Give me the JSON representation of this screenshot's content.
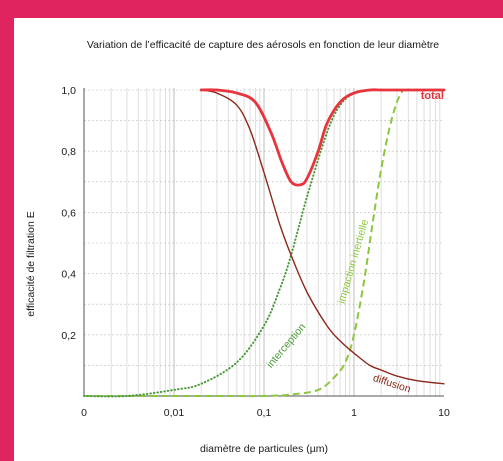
{
  "chart_data": {
    "type": "line",
    "title": "Variation de l’efficacité de capture des aérosols en fonction de leur diamètre",
    "xlabel": "diamètre de particules (µm)",
    "ylabel": "efficacité de filtration E",
    "x_scale": "log",
    "xlim": [
      0.001,
      10
    ],
    "ylim": [
      0,
      1
    ],
    "x_tick_labels": [
      {
        "value": 0.001,
        "label": "0"
      },
      {
        "value": 0.01,
        "label": "0,01"
      },
      {
        "value": 0.1,
        "label": "0,1"
      },
      {
        "value": 1,
        "label": "1"
      },
      {
        "value": 10,
        "label": "10"
      }
    ],
    "y_tick_labels": [
      {
        "value": 1.0,
        "label": "1,0"
      },
      {
        "value": 0.8,
        "label": "0,8"
      },
      {
        "value": 0.6,
        "label": "0,6"
      },
      {
        "value": 0.4,
        "label": "0,4"
      },
      {
        "value": 0.2,
        "label": "0,2"
      }
    ],
    "grid": true,
    "series": [
      {
        "name": "total",
        "color": "#e8343c",
        "style": "solid-thick",
        "x": [
          0.02,
          0.03,
          0.05,
          0.08,
          0.12,
          0.16,
          0.2,
          0.25,
          0.3,
          0.4,
          0.5,
          0.7,
          1.0,
          1.5,
          2,
          3,
          5,
          10
        ],
        "y": [
          1.0,
          1.0,
          0.99,
          0.96,
          0.86,
          0.76,
          0.7,
          0.69,
          0.71,
          0.8,
          0.89,
          0.96,
          0.99,
          1.0,
          1.0,
          1.0,
          1.0,
          1.0
        ]
      },
      {
        "name": "diffusion",
        "color": "#8c2a1c",
        "style": "solid",
        "x": [
          0.02,
          0.03,
          0.05,
          0.07,
          0.1,
          0.15,
          0.2,
          0.3,
          0.5,
          0.7,
          1.0,
          1.5,
          2,
          3,
          5,
          10
        ],
        "y": [
          1.0,
          0.99,
          0.95,
          0.87,
          0.73,
          0.56,
          0.46,
          0.34,
          0.23,
          0.18,
          0.14,
          0.1,
          0.085,
          0.065,
          0.05,
          0.04
        ]
      },
      {
        "name": "interception",
        "color": "#4a9a3a",
        "style": "dotted",
        "x": [
          0.001,
          0.003,
          0.01,
          0.02,
          0.05,
          0.1,
          0.15,
          0.2,
          0.3,
          0.5,
          0.7,
          1.0,
          1.5,
          2,
          3,
          10
        ],
        "y": [
          0.0,
          0.0,
          0.02,
          0.04,
          0.11,
          0.23,
          0.35,
          0.46,
          0.65,
          0.86,
          0.95,
          0.99,
          1.0,
          1.0,
          1.0,
          1.0
        ]
      },
      {
        "name": "impaction inertielle",
        "color": "#8cc63f",
        "style": "dashed",
        "x": [
          0.001,
          0.03,
          0.1,
          0.2,
          0.4,
          0.6,
          0.8,
          1.0,
          1.3,
          1.6,
          2.0,
          2.5,
          3.0,
          3.5
        ],
        "y": [
          0.0,
          0.0,
          0.0,
          0.005,
          0.02,
          0.06,
          0.11,
          0.2,
          0.38,
          0.56,
          0.74,
          0.88,
          0.96,
          1.0
        ]
      }
    ]
  }
}
